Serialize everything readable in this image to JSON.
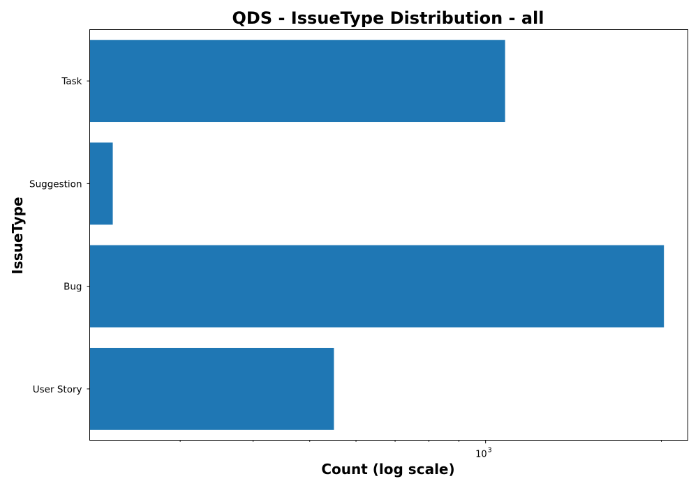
{
  "chart_data": {
    "type": "bar",
    "orientation": "horizontal",
    "title": "QDS - IssueType Distribution - all",
    "xlabel": "Count (log scale)",
    "ylabel": "IssueType",
    "x_scale": "log",
    "xlim": [
      210,
      2220
    ],
    "x_ticks": [
      {
        "value": 1000,
        "base": "10",
        "exponent": "3"
      }
    ],
    "x_minor_ticks": [
      300,
      400,
      500,
      600,
      700,
      800,
      900,
      2000
    ],
    "categories": [
      "Task",
      "Suggestion",
      "Bug",
      "User Story"
    ],
    "values": [
      1080,
      230,
      2020,
      550
    ],
    "bar_color": "#1f77b4",
    "grid": false,
    "legend": "none"
  }
}
